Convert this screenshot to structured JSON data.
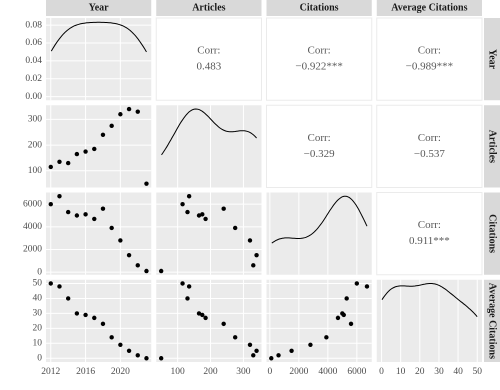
{
  "chart_data": {
    "type": "pairs",
    "corr_title": "Corr:",
    "variables": [
      {
        "name": "Year",
        "values": [
          2012,
          2013,
          2014,
          2015,
          2016,
          2017,
          2018,
          2019,
          2020,
          2021,
          2022,
          2023
        ],
        "lim": [
          2011.45,
          2023.55
        ],
        "ticks": [
          2012,
          2016,
          2020
        ]
      },
      {
        "name": "Articles",
        "values": [
          115,
          135,
          130,
          165,
          175,
          185,
          240,
          275,
          320,
          340,
          330,
          50
        ],
        "lim": [
          35,
          355
        ],
        "ticks": [
          100,
          200,
          300
        ]
      },
      {
        "name": "Citations",
        "values": [
          6000,
          6700,
          5300,
          5000,
          5100,
          4700,
          5600,
          3900,
          2800,
          1500,
          600,
          100
        ],
        "lim": [
          -230,
          7030
        ],
        "ticks": [
          0,
          2000,
          4000,
          6000
        ]
      },
      {
        "name": "Average Citations",
        "values": [
          50,
          48,
          40,
          30,
          29,
          27,
          23,
          14,
          9,
          5,
          2,
          0
        ],
        "lim": [
          -2.5,
          52.5
        ],
        "ticks": [
          0,
          10,
          20,
          30,
          40,
          50
        ]
      }
    ],
    "density_ylim": [
      -0.004,
      0.088
    ],
    "density_ticks": [
      {
        "value": 0,
        "label": "0.00"
      },
      {
        "value": 0.02,
        "label": "0.02"
      },
      {
        "value": 0.04,
        "label": "0.04"
      },
      {
        "value": 0.06,
        "label": "0.06"
      },
      {
        "value": 0.08,
        "label": "0.08"
      }
    ],
    "corr_labels": [
      [
        null,
        "0.483",
        "−0.922***",
        "−0.989***"
      ],
      [
        null,
        null,
        "−0.329",
        "−0.537"
      ],
      [
        null,
        null,
        null,
        "0.911***"
      ],
      [
        null,
        null,
        null,
        null
      ]
    ]
  }
}
